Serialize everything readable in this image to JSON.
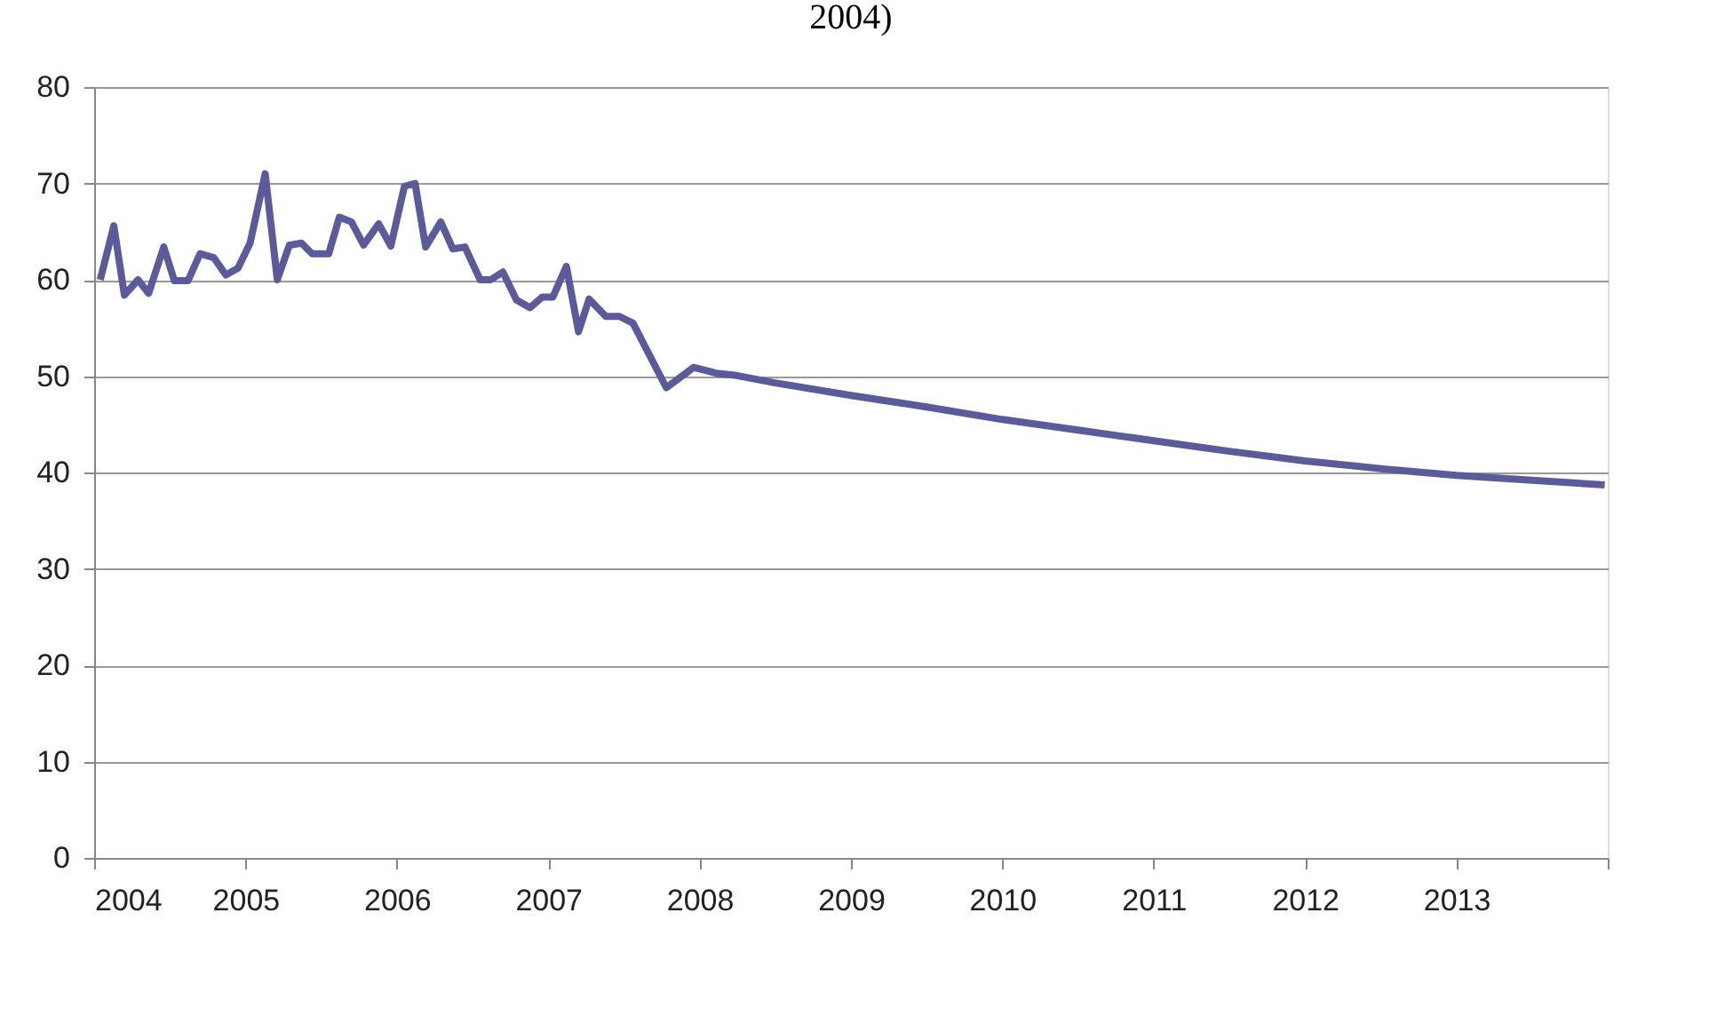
{
  "chart_data": {
    "type": "line",
    "title": "2004)",
    "x": [
      2004.04,
      2004.13,
      2004.2,
      2004.29,
      2004.36,
      2004.46,
      2004.53,
      2004.62,
      2004.7,
      2004.79,
      2004.87,
      2004.95,
      2005.03,
      2005.13,
      2005.21,
      2005.29,
      2005.37,
      2005.44,
      2005.55,
      2005.62,
      2005.7,
      2005.78,
      2005.88,
      2005.96,
      2006.05,
      2006.12,
      2006.19,
      2006.29,
      2006.37,
      2006.45,
      2006.55,
      2006.62,
      2006.7,
      2006.79,
      2006.88,
      2006.96,
      2007.03,
      2007.12,
      2007.2,
      2007.27,
      2007.38,
      2007.47,
      2007.56,
      2007.78,
      2007.96,
      2008.11,
      2008.23,
      2008.5,
      2009,
      2009.5,
      2010,
      2010.5,
      2011,
      2011.5,
      2012,
      2012.5,
      2013,
      2013.5,
      2013.98
    ],
    "series": [
      {
        "color": "#5b5b9b",
        "values": [
          60,
          65.6,
          58.4,
          60,
          58.6,
          63.4,
          59.9,
          59.9,
          62.7,
          62.3,
          60.5,
          61.2,
          63.8,
          71,
          60,
          63.6,
          63.8,
          62.7,
          62.7,
          66.5,
          66,
          63.6,
          65.8,
          63.5,
          69.7,
          70,
          63.4,
          66,
          63.2,
          63.4,
          60,
          60,
          60.8,
          57.9,
          57.1,
          58.2,
          58.2,
          61.4,
          54.6,
          58,
          56.2,
          56.2,
          55.5,
          48.8,
          50.9,
          50.3,
          50.1,
          49.3,
          48,
          46.8,
          45.5,
          44.4,
          43.3,
          42.2,
          41.2,
          40.4,
          39.7,
          39.2,
          38.7
        ]
      }
    ],
    "xlim": [
      2004,
      2014
    ],
    "xticks": [
      2004,
      2005,
      2006,
      2007,
      2008,
      2009,
      2010,
      2011,
      2012,
      2013,
      {
        "value": 2014,
        "label": null
      }
    ],
    "ylim": [
      0,
      80
    ],
    "yticks": [
      0,
      10,
      20,
      30,
      40,
      50,
      60,
      70,
      80
    ],
    "grid": "y",
    "marker": "none",
    "line_style": "solid"
  }
}
